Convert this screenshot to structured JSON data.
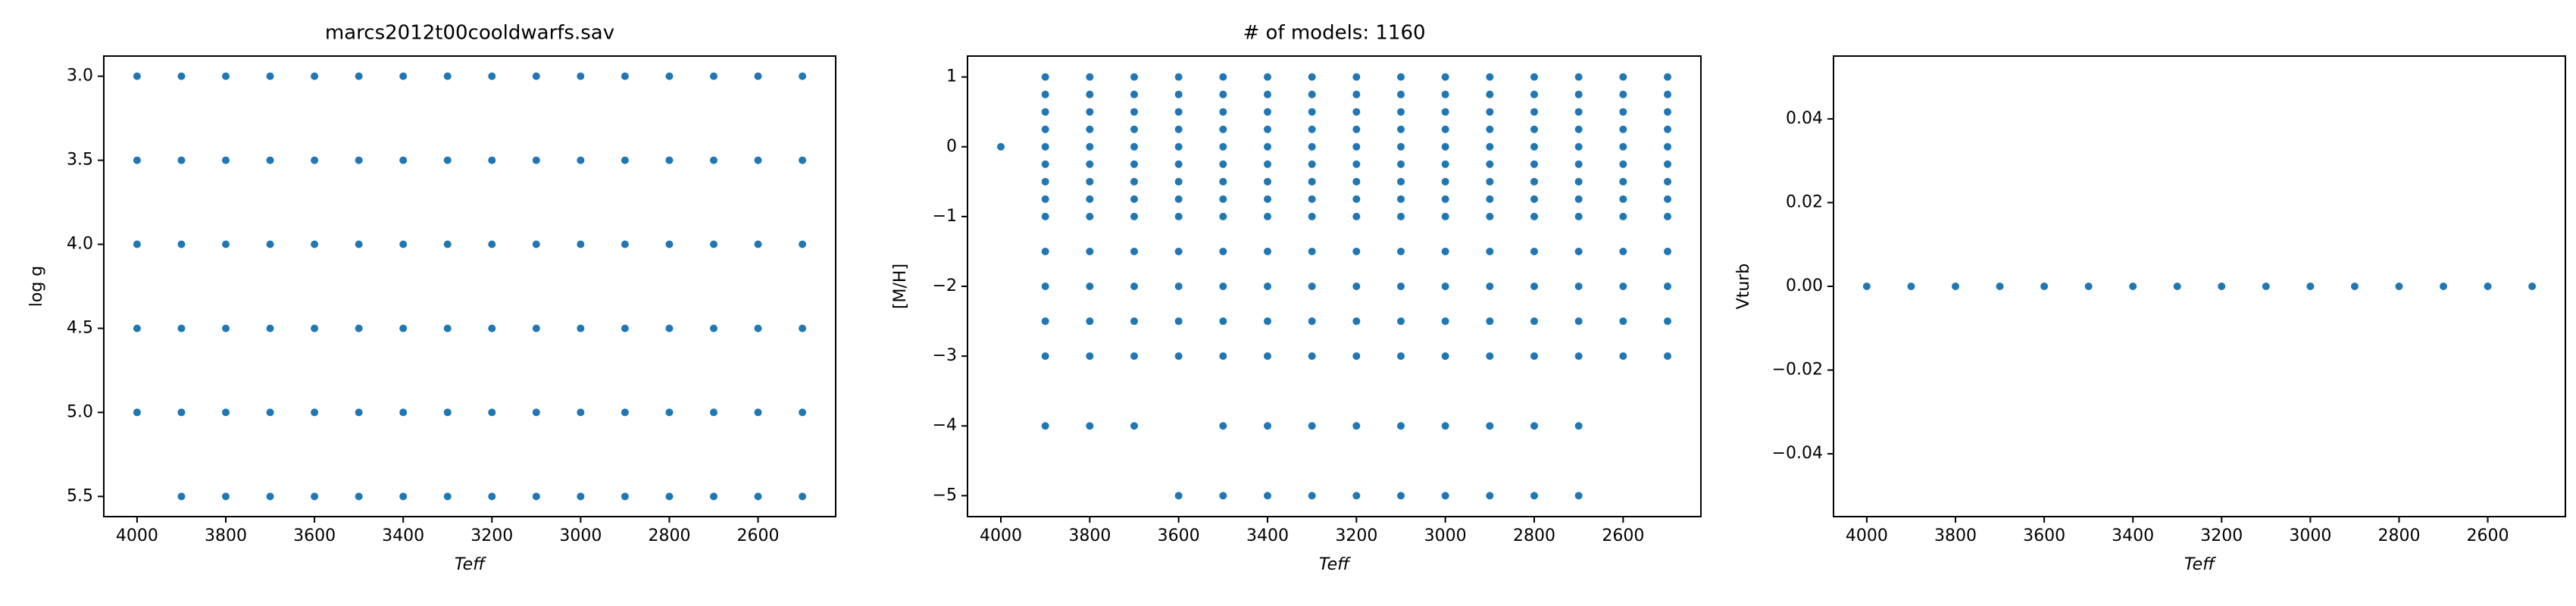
{
  "chart_data": [
    {
      "type": "scatter",
      "title": "marcs2012t00cooldwarfs.sav",
      "xlabel": "Teff",
      "ylabel": "log g",
      "color": "#1f77b4",
      "xlim": [
        4075,
        2425
      ],
      "ylim": [
        5.62,
        2.88
      ],
      "xticks": [
        4000,
        3800,
        3600,
        3400,
        3200,
        3000,
        2800,
        2600
      ],
      "yticks": [
        {
          "value": 3,
          "label": "3.0"
        },
        3.5,
        {
          "value": 4,
          "label": "4.0"
        },
        4.5,
        {
          "value": 5,
          "label": "5.0"
        },
        5.5
      ],
      "x": [
        4000,
        3900,
        3800,
        3700,
        3600,
        3500,
        3400,
        3300,
        3200,
        3100,
        3000,
        2900,
        2800,
        2700,
        2600,
        2500,
        4000,
        3900,
        3800,
        3700,
        3600,
        3500,
        3400,
        3300,
        3200,
        3100,
        3000,
        2900,
        2800,
        2700,
        2600,
        2500,
        4000,
        3900,
        3800,
        3700,
        3600,
        3500,
        3400,
        3300,
        3200,
        3100,
        3000,
        2900,
        2800,
        2700,
        2600,
        2500,
        4000,
        3900,
        3800,
        3700,
        3600,
        3500,
        3400,
        3300,
        3200,
        3100,
        3000,
        2900,
        2800,
        2700,
        2600,
        2500,
        4000,
        3900,
        3800,
        3700,
        3600,
        3500,
        3400,
        3300,
        3200,
        3100,
        3000,
        2900,
        2800,
        2700,
        2600,
        2500,
        3900,
        3800,
        3700,
        3600,
        3500,
        3400,
        3300,
        3200,
        3100,
        3000,
        2900,
        2800,
        2700,
        2600,
        2500
      ],
      "y": [
        3,
        3,
        3,
        3,
        3,
        3,
        3,
        3,
        3,
        3,
        3,
        3,
        3,
        3,
        3,
        3,
        3.5,
        3.5,
        3.5,
        3.5,
        3.5,
        3.5,
        3.5,
        3.5,
        3.5,
        3.5,
        3.5,
        3.5,
        3.5,
        3.5,
        3.5,
        3.5,
        4,
        4,
        4,
        4,
        4,
        4,
        4,
        4,
        4,
        4,
        4,
        4,
        4,
        4,
        4,
        4,
        4.5,
        4.5,
        4.5,
        4.5,
        4.5,
        4.5,
        4.5,
        4.5,
        4.5,
        4.5,
        4.5,
        4.5,
        4.5,
        4.5,
        4.5,
        4.5,
        5,
        5,
        5,
        5,
        5,
        5,
        5,
        5,
        5,
        5,
        5,
        5,
        5,
        5,
        5,
        5,
        5.5,
        5.5,
        5.5,
        5.5,
        5.5,
        5.5,
        5.5,
        5.5,
        5.5,
        5.5,
        5.5,
        5.5,
        5.5,
        5.5,
        5.5
      ]
    },
    {
      "type": "scatter",
      "title": "# of models: 1160",
      "xlabel": "Teff",
      "ylabel": "[M/H]",
      "color": "#1f77b4",
      "xlim": [
        4075,
        2425
      ],
      "ylim": [
        -5.3,
        1.3
      ],
      "xticks": [
        4000,
        3800,
        3600,
        3400,
        3200,
        3000,
        2800,
        2600
      ],
      "yticks": [
        1,
        0,
        {
          "value": -1,
          "label": "−1"
        },
        {
          "value": -2,
          "label": "−2"
        },
        {
          "value": -3,
          "label": "−3"
        },
        {
          "value": -4,
          "label": "−4"
        },
        {
          "value": -5,
          "label": "−5"
        }
      ],
      "x": [
        4000,
        3900,
        3800,
        3700,
        3600,
        3500,
        3400,
        3300,
        3200,
        3100,
        3000,
        2900,
        2800,
        2700,
        2600,
        2500,
        3900,
        3800,
        3700,
        3600,
        3500,
        3400,
        3300,
        3200,
        3100,
        3000,
        2900,
        2800,
        2700,
        2600,
        2500,
        3900,
        3800,
        3700,
        3600,
        3500,
        3400,
        3300,
        3200,
        3100,
        3000,
        2900,
        2800,
        2700,
        2600,
        2500,
        3900,
        3800,
        3700,
        3600,
        3500,
        3400,
        3300,
        3200,
        3100,
        3000,
        2900,
        2800,
        2700,
        2600,
        2500,
        3900,
        3800,
        3700,
        3600,
        3500,
        3400,
        3300,
        3200,
        3100,
        3000,
        2900,
        2800,
        2700,
        2600,
        2500,
        3900,
        3800,
        3700,
        3600,
        3500,
        3400,
        3300,
        3200,
        3100,
        3000,
        2900,
        2800,
        2700,
        2600,
        2500,
        3900,
        3800,
        3700,
        3600,
        3500,
        3400,
        3300,
        3200,
        3100,
        3000,
        2900,
        2800,
        2700,
        2600,
        2500,
        3900,
        3800,
        3700,
        3600,
        3500,
        3400,
        3300,
        3200,
        3100,
        3000,
        2900,
        2800,
        2700,
        2600,
        2500,
        3900,
        3800,
        3700,
        3600,
        3500,
        3400,
        3300,
        3200,
        3100,
        3000,
        2900,
        2800,
        2700,
        2600,
        2500,
        3900,
        3800,
        3700,
        3600,
        3500,
        3400,
        3300,
        3200,
        3100,
        3000,
        2900,
        2800,
        2700,
        2600,
        2500,
        3900,
        3800,
        3700,
        3600,
        3500,
        3400,
        3300,
        3200,
        3100,
        3000,
        2900,
        2800,
        2700,
        2600,
        2500,
        3900,
        3800,
        3700,
        3600,
        3500,
        3400,
        3300,
        3200,
        3100,
        3000,
        2900,
        2800,
        2700,
        2600,
        2500,
        3900,
        3800,
        3700,
        3600,
        3500,
        3400,
        3300,
        3200,
        3100,
        3000,
        2900,
        2800,
        2700,
        2600,
        2500,
        3900,
        3800,
        3700,
        3500,
        3400,
        3300,
        3200,
        3100,
        3000,
        2900,
        2800,
        2700,
        3600,
        3500,
        3400,
        3300,
        3200,
        3100,
        3000,
        2900,
        2800,
        2700
      ],
      "y": [
        0,
        1,
        1,
        1,
        1,
        1,
        1,
        1,
        1,
        1,
        1,
        1,
        1,
        1,
        1,
        1,
        0.75,
        0.75,
        0.75,
        0.75,
        0.75,
        0.75,
        0.75,
        0.75,
        0.75,
        0.75,
        0.75,
        0.75,
        0.75,
        0.75,
        0.75,
        0.5,
        0.5,
        0.5,
        0.5,
        0.5,
        0.5,
        0.5,
        0.5,
        0.5,
        0.5,
        0.5,
        0.5,
        0.5,
        0.5,
        0.5,
        0.25,
        0.25,
        0.25,
        0.25,
        0.25,
        0.25,
        0.25,
        0.25,
        0.25,
        0.25,
        0.25,
        0.25,
        0.25,
        0.25,
        0.25,
        0,
        0,
        0,
        0,
        0,
        0,
        0,
        0,
        0,
        0,
        0,
        0,
        0,
        0,
        0,
        -0.25,
        -0.25,
        -0.25,
        -0.25,
        -0.25,
        -0.25,
        -0.25,
        -0.25,
        -0.25,
        -0.25,
        -0.25,
        -0.25,
        -0.25,
        -0.25,
        -0.25,
        -0.5,
        -0.5,
        -0.5,
        -0.5,
        -0.5,
        -0.5,
        -0.5,
        -0.5,
        -0.5,
        -0.5,
        -0.5,
        -0.5,
        -0.5,
        -0.5,
        -0.5,
        -0.75,
        -0.75,
        -0.75,
        -0.75,
        -0.75,
        -0.75,
        -0.75,
        -0.75,
        -0.75,
        -0.75,
        -0.75,
        -0.75,
        -0.75,
        -0.75,
        -0.75,
        -1,
        -1,
        -1,
        -1,
        -1,
        -1,
        -1,
        -1,
        -1,
        -1,
        -1,
        -1,
        -1,
        -1,
        -1,
        -1.5,
        -1.5,
        -1.5,
        -1.5,
        -1.5,
        -1.5,
        -1.5,
        -1.5,
        -1.5,
        -1.5,
        -1.5,
        -1.5,
        -1.5,
        -1.5,
        -1.5,
        -2,
        -2,
        -2,
        -2,
        -2,
        -2,
        -2,
        -2,
        -2,
        -2,
        -2,
        -2,
        -2,
        -2,
        -2,
        -2.5,
        -2.5,
        -2.5,
        -2.5,
        -2.5,
        -2.5,
        -2.5,
        -2.5,
        -2.5,
        -2.5,
        -2.5,
        -2.5,
        -2.5,
        -2.5,
        -2.5,
        -3,
        -3,
        -3,
        -3,
        -3,
        -3,
        -3,
        -3,
        -3,
        -3,
        -3,
        -3,
        -3,
        -3,
        -3,
        -4,
        -4,
        -4,
        -4,
        -4,
        -4,
        -4,
        -4,
        -4,
        -4,
        -4,
        -4,
        -5,
        -5,
        -5,
        -5,
        -5,
        -5,
        -5,
        -5,
        -5,
        -5
      ]
    },
    {
      "type": "scatter",
      "xlabel": "Teff",
      "ylabel": "Vturb",
      "color": "#1f77b4",
      "xlim": [
        4075,
        2425
      ],
      "ylim": [
        -0.055,
        0.055
      ],
      "xticks": [
        4000,
        3800,
        3600,
        3400,
        3200,
        3000,
        2800,
        2600
      ],
      "yticks": [
        {
          "value": -0.04,
          "label": "−0.04"
        },
        {
          "value": -0.02,
          "label": "−0.02"
        },
        {
          "value": 0,
          "label": "0.00"
        },
        0.02,
        0.04
      ],
      "x": [
        4000,
        3900,
        3800,
        3700,
        3600,
        3500,
        3400,
        3300,
        3200,
        3100,
        3000,
        2900,
        2800,
        2700,
        2600,
        2500
      ],
      "y": [
        0,
        0,
        0,
        0,
        0,
        0,
        0,
        0,
        0,
        0,
        0,
        0,
        0,
        0,
        0,
        0
      ]
    }
  ]
}
